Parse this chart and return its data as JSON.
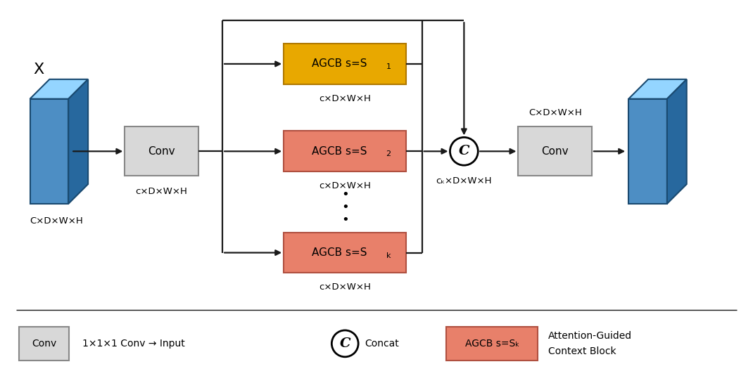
{
  "fig_width": 10.7,
  "fig_height": 5.45,
  "bg_color": "#ffffff",
  "input_block_label": "X",
  "input_block_sublabel": "C×D×W×H",
  "output_block_sublabel": "C×D×W×H",
  "conv1_label": "Conv",
  "conv1_sublabel": "c×D×W×H",
  "conv2_label": "Conv",
  "conv2_toplabel": "C×D×W×H",
  "agcb1_label": "AGCB s=S",
  "agcb1_sub": "1",
  "agcb1_sublabel": "c×D×W×H",
  "agcb2_label": "AGCB s=S",
  "agcb2_sub": "2",
  "agcb2_sublabel": "c×D×W×H",
  "agcbk_label": "AGCB s=S",
  "agcbk_sub": "k",
  "agcbk_sublabel": "c×D×W×H",
  "concat_sublabel": "cₖ×D×W×H",
  "color_3d_front": "#4d8ec4",
  "color_3d_top": "#a0c8e8",
  "color_3d_right": "#2a6090",
  "color_3d_edge": "#1a4a70",
  "color_conv": "#d8d8d8",
  "color_conv_edge": "#888888",
  "color_agcb1": "#e8a800",
  "color_agcb1_edge": "#b07800",
  "color_agcb2": "#e8806a",
  "color_agcb2_edge": "#b05040",
  "color_agcbk": "#e8806a",
  "color_agcbk_edge": "#b05040",
  "color_legend_agcb": "#e8806a",
  "color_arrow": "#1a1a1a",
  "legend_conv_text": "1×1×1 Conv → Input",
  "legend_concat_label": "Concat",
  "legend_agcb_label": "AGCB s=Sₖ",
  "legend_agcb_text1": "Attention-Guided",
  "legend_agcb_text2": "Context Block"
}
